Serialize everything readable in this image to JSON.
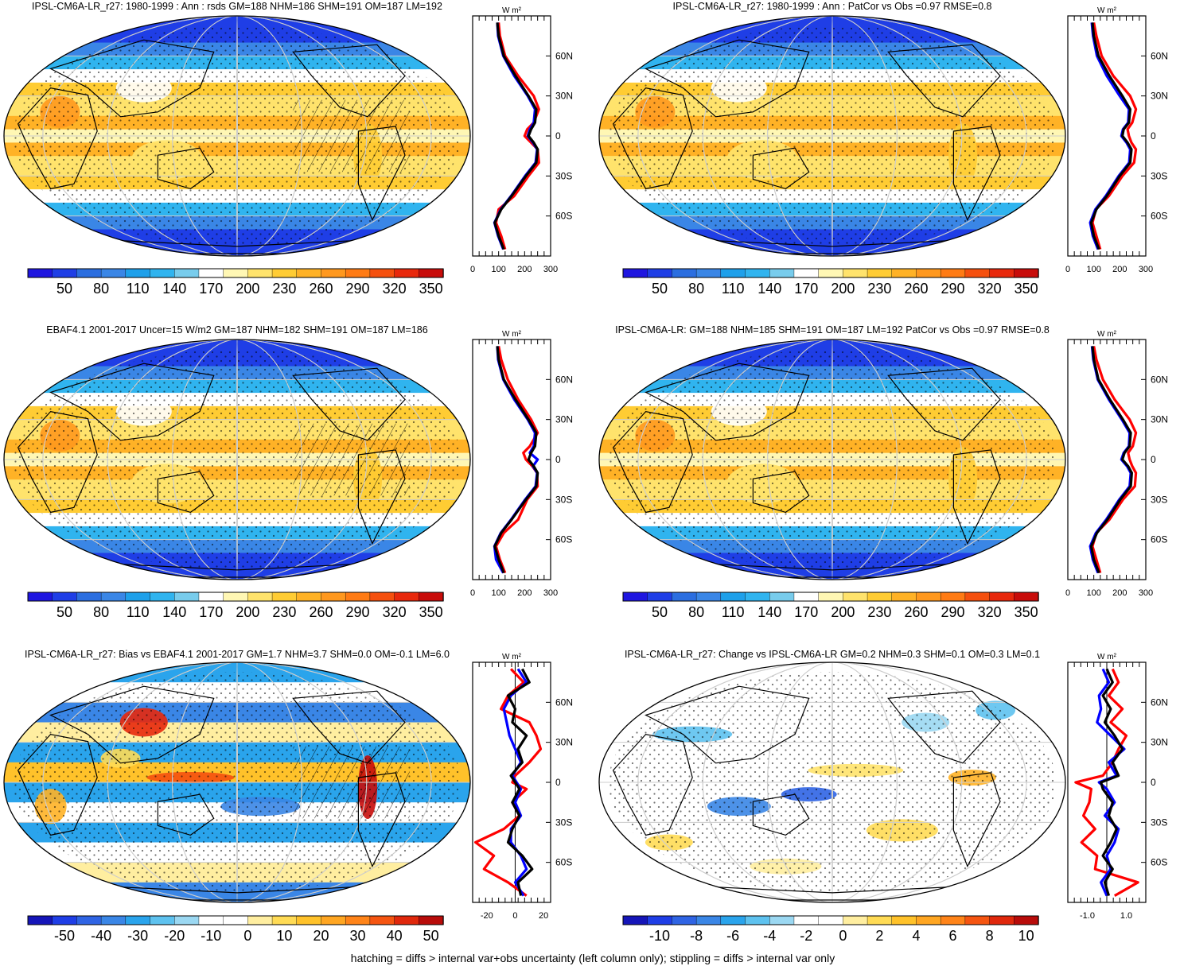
{
  "footnote": "hatching = diffs > internal var+obs uncertainty (left column only); stippling = diffs > internal var only",
  "chart_data": [
    {
      "type": "map",
      "title": "IPSL-CM6A-LR_r27: 1980-1999 : Ann : rsds GM=188 NHM=186 SHM=191 OM=187 LM=192",
      "colorbar_labels": [
        "50",
        "80",
        "110",
        "140",
        "170",
        "200",
        "230",
        "260",
        "290",
        "320",
        "350"
      ],
      "profile": {
        "unit": "W m²",
        "y_ticks": [
          "60N",
          "30N",
          "0",
          "30S",
          "60S"
        ],
        "x_ticks": [
          "0",
          "100",
          "200",
          "300"
        ],
        "xlim": [
          0,
          300
        ],
        "series": [
          {
            "color": "#000000",
            "lat": [
              85,
              75,
              60,
              45,
              30,
              20,
              10,
              5,
              0,
              -5,
              -10,
              -20,
              -30,
              -45,
              -55,
              -65,
              -75,
              -85
            ],
            "values": [
              95,
              100,
              120,
              165,
              215,
              245,
              240,
              225,
              215,
              235,
              250,
              245,
              205,
              150,
              110,
              85,
              100,
              120
            ]
          },
          {
            "color": "#0000ff",
            "lat": [
              85,
              75,
              60,
              45,
              30,
              20,
              10,
              5,
              0,
              -5,
              -10,
              -20,
              -30,
              -45,
              -55,
              -65,
              -75,
              -85
            ],
            "values": [
              95,
              98,
              118,
              160,
              212,
              240,
              235,
              220,
              212,
              232,
              248,
              242,
              202,
              148,
              108,
              84,
              98,
              118
            ]
          },
          {
            "color": "#ff0000",
            "lat": [
              85,
              75,
              60,
              45,
              30,
              20,
              10,
              5,
              0,
              -5,
              -10,
              -20,
              -30,
              -45,
              -55,
              -65,
              -75,
              -85
            ],
            "values": [
              100,
              105,
              125,
              175,
              235,
              255,
              235,
              210,
              200,
              225,
              250,
              255,
              215,
              160,
              100,
              90,
              110,
              125
            ]
          }
        ]
      }
    },
    {
      "type": "map",
      "title": "IPSL-CM6A-LR_r27: 1980-1999 : Ann : PatCor vs Obs =0.97 RMSE=0.8",
      "colorbar_labels": [
        "50",
        "80",
        "110",
        "140",
        "170",
        "200",
        "230",
        "260",
        "290",
        "320",
        "350"
      ],
      "profile": {
        "unit": "W m²",
        "y_ticks": [
          "60N",
          "30N",
          "0",
          "30S",
          "60S"
        ],
        "x_ticks": [
          "0",
          "100",
          "200",
          "300"
        ],
        "xlim": [
          0,
          300
        ],
        "series": [
          {
            "color": "#000000",
            "lat": [
              85,
              75,
              60,
              45,
              30,
              20,
              10,
              5,
              0,
              -5,
              -10,
              -20,
              -30,
              -45,
              -55,
              -65,
              -75,
              -85
            ],
            "values": [
              95,
              100,
              118,
              160,
              210,
              240,
              235,
              215,
              210,
              230,
              245,
              240,
              200,
              150,
              110,
              90,
              100,
              120
            ]
          },
          {
            "color": "#0000ff",
            "lat": [
              85,
              75,
              60,
              45,
              30,
              20,
              10,
              5,
              0,
              -5,
              -10,
              -20,
              -30,
              -45,
              -55,
              -65,
              -75,
              -85
            ],
            "values": [
              92,
              97,
              112,
              150,
              200,
              235,
              232,
              212,
              206,
              226,
              240,
              236,
              196,
              146,
              106,
              86,
              96,
              116
            ]
          },
          {
            "color": "#ff0000",
            "lat": [
              85,
              75,
              60,
              45,
              30,
              20,
              10,
              5,
              0,
              -5,
              -10,
              -20,
              -30,
              -45,
              -55,
              -65,
              -75,
              -85
            ],
            "values": [
              100,
              110,
              130,
              175,
              240,
              262,
              248,
              230,
              235,
              245,
              262,
              255,
              210,
              158,
              108,
              95,
              110,
              125
            ]
          }
        ]
      }
    },
    {
      "type": "map",
      "title": "EBAF4.1 2001-2017 Uncer=15 W/m2 GM=187 NHM=182 SHM=191 OM=187 LM=186",
      "colorbar_labels": [
        "50",
        "80",
        "110",
        "140",
        "170",
        "200",
        "230",
        "260",
        "290",
        "320",
        "350"
      ],
      "profile": {
        "unit": "W m²",
        "y_ticks": [
          "60N",
          "30N",
          "0",
          "30S",
          "60S"
        ],
        "x_ticks": [
          "0",
          "100",
          "200",
          "300"
        ],
        "xlim": [
          0,
          300
        ],
        "series": [
          {
            "color": "#000000",
            "lat": [
              85,
              75,
              60,
              45,
              30,
              20,
              10,
              5,
              0,
              -5,
              -10,
              -20,
              -30,
              -45,
              -55,
              -65,
              -75,
              -85
            ],
            "values": [
              95,
              100,
              120,
              165,
              215,
              245,
              240,
              225,
              215,
              235,
              250,
              245,
              205,
              150,
              110,
              85,
              100,
              120
            ]
          },
          {
            "color": "#0000ff",
            "lat": [
              85,
              75,
              60,
              45,
              30,
              20,
              10,
              5,
              0,
              -5,
              -10,
              -20,
              -30,
              -45,
              -55,
              -65,
              -75,
              -85
            ],
            "values": [
              95,
              98,
              118,
              160,
              212,
              240,
              235,
              220,
              250,
              232,
              248,
              242,
              202,
              148,
              108,
              84,
              90,
              118
            ]
          },
          {
            "color": "#ff0000",
            "lat": [
              85,
              75,
              60,
              45,
              30,
              20,
              10,
              5,
              0,
              -5,
              -10,
              -20,
              -30,
              -45,
              -55,
              -65,
              -75,
              -85
            ],
            "values": [
              100,
              110,
              135,
              175,
              225,
              250,
              220,
              195,
              205,
              230,
              248,
              250,
              210,
              175,
              120,
              90,
              105,
              125
            ]
          }
        ]
      }
    },
    {
      "type": "map",
      "title": "IPSL-CM6A-LR: GM=188 NHM=185 SHM=191 OM=187 LM=192 PatCor vs Obs =0.97 RMSE=0.8",
      "colorbar_labels": [
        "50",
        "80",
        "110",
        "140",
        "170",
        "200",
        "230",
        "260",
        "290",
        "320",
        "350"
      ],
      "profile": {
        "unit": "W m²",
        "y_ticks": [
          "60N",
          "30N",
          "0",
          "30S",
          "60S"
        ],
        "x_ticks": [
          "0",
          "100",
          "200",
          "300"
        ],
        "xlim": [
          0,
          300
        ],
        "series": [
          {
            "color": "#000000",
            "lat": [
              85,
              75,
              60,
              45,
              30,
              20,
              10,
              5,
              0,
              -5,
              -10,
              -20,
              -30,
              -45,
              -55,
              -65,
              -75,
              -85
            ],
            "values": [
              95,
              100,
              118,
              162,
              212,
              242,
              238,
              218,
              210,
              232,
              246,
              242,
              202,
              152,
              112,
              90,
              100,
              120
            ]
          },
          {
            "color": "#0000ff",
            "lat": [
              85,
              75,
              60,
              45,
              30,
              20,
              10,
              5,
              0,
              -5,
              -10,
              -20,
              -30,
              -45,
              -55,
              -65,
              -75,
              -85
            ],
            "values": [
              93,
              98,
              115,
              158,
              208,
              238,
              235,
              215,
              206,
              228,
              242,
              238,
              198,
              148,
              108,
              86,
              96,
              116
            ]
          },
          {
            "color": "#ff0000",
            "lat": [
              85,
              75,
              60,
              45,
              30,
              20,
              10,
              5,
              0,
              -5,
              -10,
              -20,
              -30,
              -45,
              -55,
              -65,
              -75,
              -85
            ],
            "values": [
              100,
              110,
              135,
              180,
              238,
              262,
              250,
              232,
              238,
              248,
              262,
              258,
              212,
              160,
              110,
              95,
              110,
              125
            ]
          }
        ]
      }
    },
    {
      "type": "map",
      "title": "IPSL-CM6A-LR_r27: Bias vs EBAF4.1 2001-2017 GM=1.7 NHM=3.7 SHM=0.0 OM=-0.1 LM=6.0",
      "colorbar_labels": [
        "-50",
        "-40",
        "-30",
        "-20",
        "-10",
        "0",
        "10",
        "20",
        "30",
        "40",
        "50"
      ],
      "profile": {
        "unit": "W m²",
        "y_ticks": [
          "60N",
          "30N",
          "0",
          "30S",
          "60S"
        ],
        "x_ticks": [
          "-20",
          "0",
          "20"
        ],
        "xlim": [
          -30,
          25
        ],
        "series": [
          {
            "color": "#000000",
            "lat": [
              85,
              75,
              65,
              55,
              45,
              35,
              25,
              15,
              5,
              0,
              -5,
              -15,
              -25,
              -35,
              -45,
              -55,
              -65,
              -75,
              -85
            ],
            "values": [
              5,
              10,
              -5,
              0,
              -2,
              8,
              2,
              5,
              -3,
              0,
              3,
              -2,
              3,
              -2,
              -5,
              5,
              12,
              2,
              4
            ]
          },
          {
            "color": "#0000ff",
            "lat": [
              85,
              75,
              65,
              55,
              45,
              35,
              25,
              15,
              5,
              0,
              -5,
              -15,
              -25,
              -35,
              -45,
              -55,
              -65,
              -75,
              -85
            ],
            "values": [
              2,
              8,
              -3,
              -8,
              -6,
              -4,
              0,
              4,
              -2,
              1,
              4,
              0,
              4,
              -3,
              -3,
              4,
              8,
              0,
              6
            ]
          },
          {
            "color": "#ff0000",
            "lat": [
              85,
              75,
              65,
              55,
              45,
              35,
              25,
              15,
              5,
              0,
              -5,
              -15,
              -25,
              -35,
              -45,
              -55,
              -65,
              -75,
              -85
            ],
            "values": [
              -3,
              6,
              -5,
              -10,
              10,
              15,
              18,
              10,
              0,
              -2,
              8,
              -2,
              3,
              -8,
              -28,
              -15,
              -22,
              -5,
              8
            ]
          }
        ]
      }
    },
    {
      "type": "map",
      "title": "IPSL-CM6A-LR_r27: Change vs IPSL-CM6A-LR GM=0.2 NHM=0.3 SHM=0.1 OM=0.3 LM=0.1",
      "colorbar_labels": [
        "-10",
        "-8",
        "-6",
        "-4",
        "-2",
        "0",
        "2",
        "4",
        "6",
        "8",
        "10"
      ],
      "profile": {
        "unit": "W m²",
        "y_ticks": [
          "60N",
          "30N",
          "0",
          "30S",
          "60S"
        ],
        "x_ticks": [
          "-1.0",
          "1.0"
        ],
        "xlim": [
          -2,
          2
        ],
        "series": [
          {
            "color": "#000000",
            "lat": [
              85,
              75,
              65,
              55,
              45,
              35,
              25,
              15,
              5,
              0,
              -5,
              -15,
              -25,
              -35,
              -45,
              -55,
              -65,
              -75,
              -85
            ],
            "values": [
              0.0,
              0.3,
              -0.2,
              0.2,
              -0.1,
              0.4,
              0.8,
              0.3,
              0.6,
              -0.3,
              -0.2,
              0.3,
              0.1,
              0.5,
              0.2,
              -0.2,
              0.3,
              -0.1,
              0.1
            ]
          },
          {
            "color": "#0000ff",
            "lat": [
              85,
              75,
              65,
              55,
              45,
              35,
              25,
              15,
              5,
              0,
              -5,
              -15,
              -25,
              -35,
              -45,
              -55,
              -65,
              -75,
              -85
            ],
            "values": [
              -0.2,
              0.1,
              -0.4,
              -0.3,
              -0.5,
              0.2,
              0.9,
              0.1,
              0.5,
              -0.4,
              0.0,
              0.4,
              -0.1,
              0.6,
              0.4,
              0.0,
              0.2,
              -0.3,
              0.0
            ]
          },
          {
            "color": "#ff0000",
            "lat": [
              85,
              75,
              65,
              55,
              45,
              35,
              25,
              15,
              5,
              0,
              -5,
              -15,
              -25,
              -35,
              -45,
              -55,
              -65,
              -75,
              -85
            ],
            "values": [
              0.3,
              0.6,
              0.1,
              0.8,
              0.2,
              1.0,
              0.6,
              0.3,
              -0.2,
              -1.6,
              -0.8,
              -0.9,
              -1.2,
              -0.6,
              -1.3,
              -0.5,
              -0.6,
              1.6,
              0.4
            ]
          }
        ]
      }
    }
  ]
}
